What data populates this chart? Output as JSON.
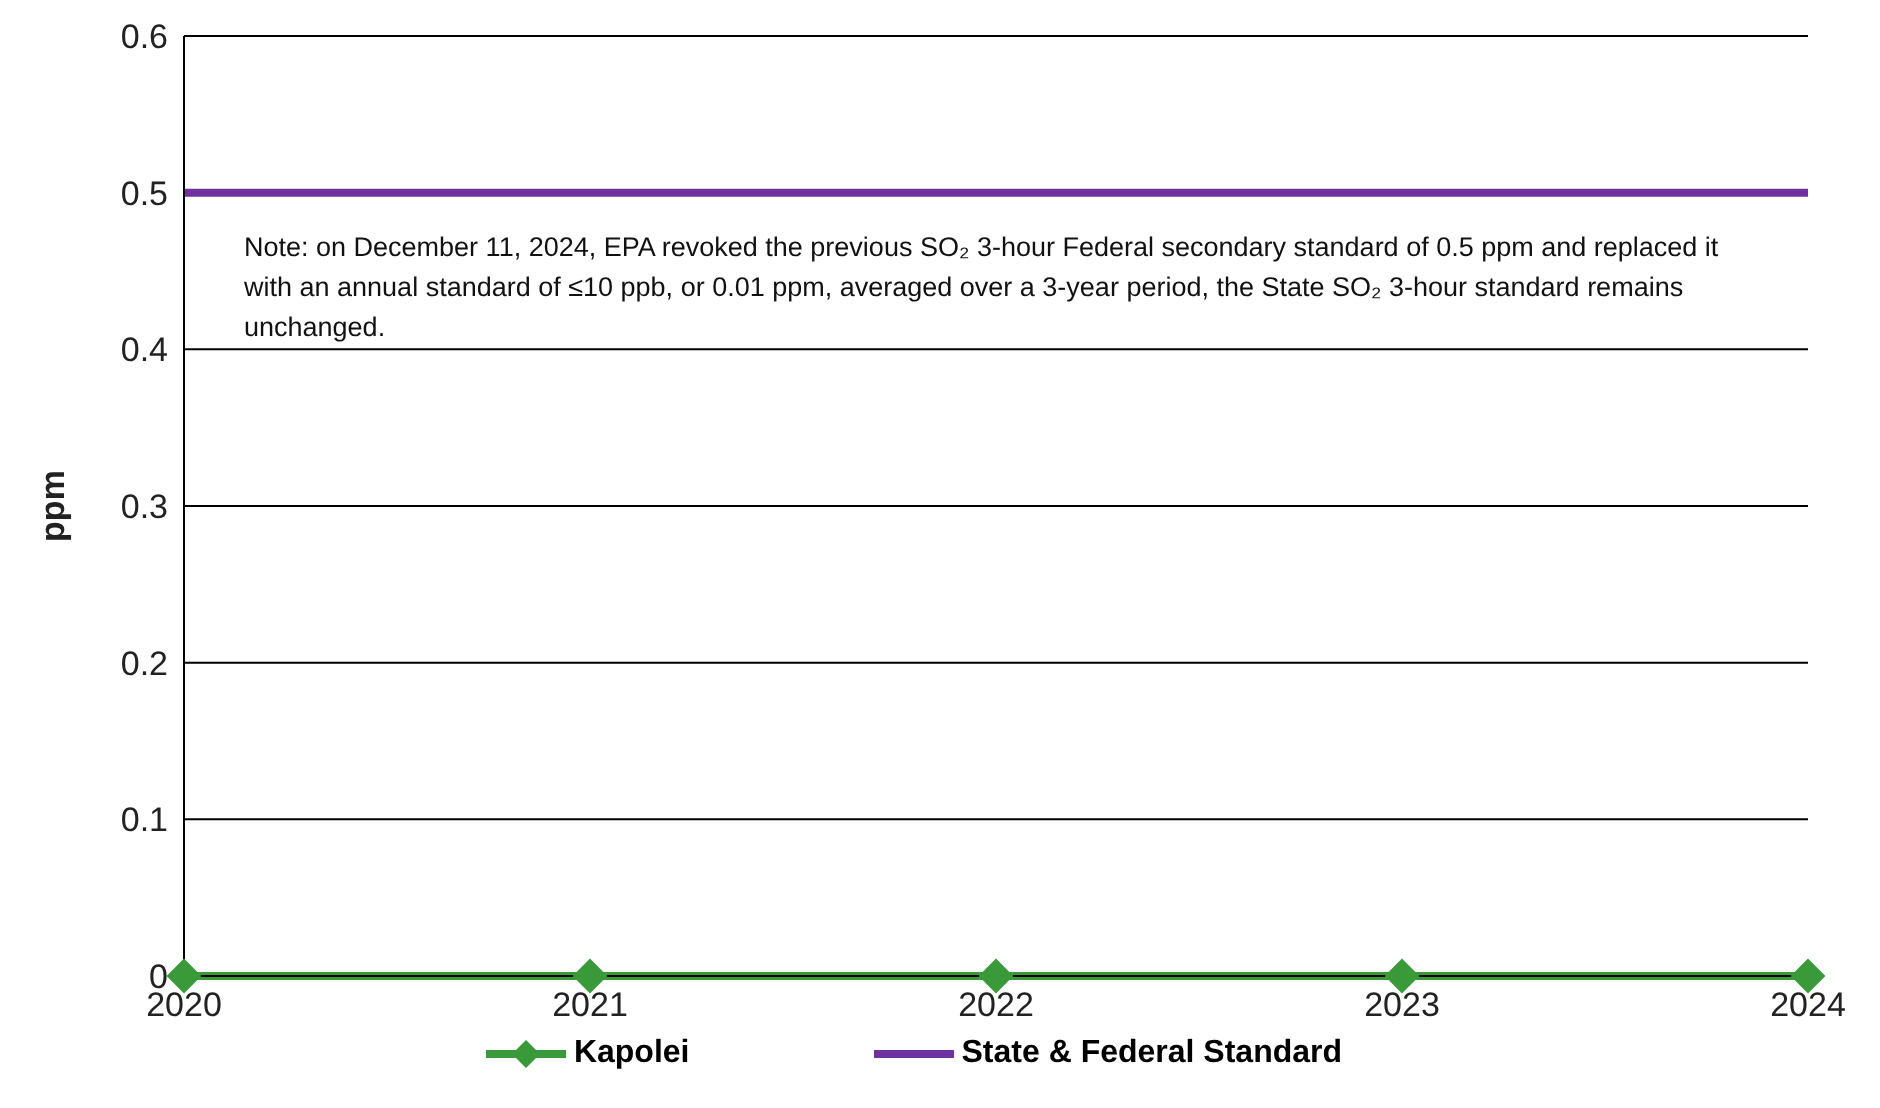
{
  "chart_data": {
    "type": "line",
    "ylabel": "ppm",
    "x": [
      2020,
      2021,
      2022,
      2023,
      2024
    ],
    "series": [
      {
        "name": "Kapolei",
        "color": "#3a9a3a",
        "values": [
          0,
          0,
          0,
          0,
          0
        ],
        "marker": "diamond"
      },
      {
        "name": "State & Federal Standard",
        "color": "#7030a0",
        "values": [
          0.5,
          0.5,
          0.5,
          0.5,
          0.5
        ],
        "marker": "none"
      }
    ],
    "xlim": [
      2020,
      2024
    ],
    "xticks": [
      2020,
      2021,
      2022,
      2023,
      2024
    ],
    "ylim": [
      0,
      0.6
    ],
    "yticks": [
      0,
      0.1,
      0.2,
      0.3,
      0.4,
      0.5,
      0.6
    ],
    "grid": "y",
    "legend": "bottom",
    "annotations": [
      "Note: on December 11, 2024, EPA revoked the previous SO₂ 3-hour Federal secondary standard of 0.5 ppm and replaced it with an annual standard of ≤10 ppb, or 0.01 ppm, averaged over a 3-year period, the State SO₂ 3-hour standard remains unchanged."
    ]
  }
}
